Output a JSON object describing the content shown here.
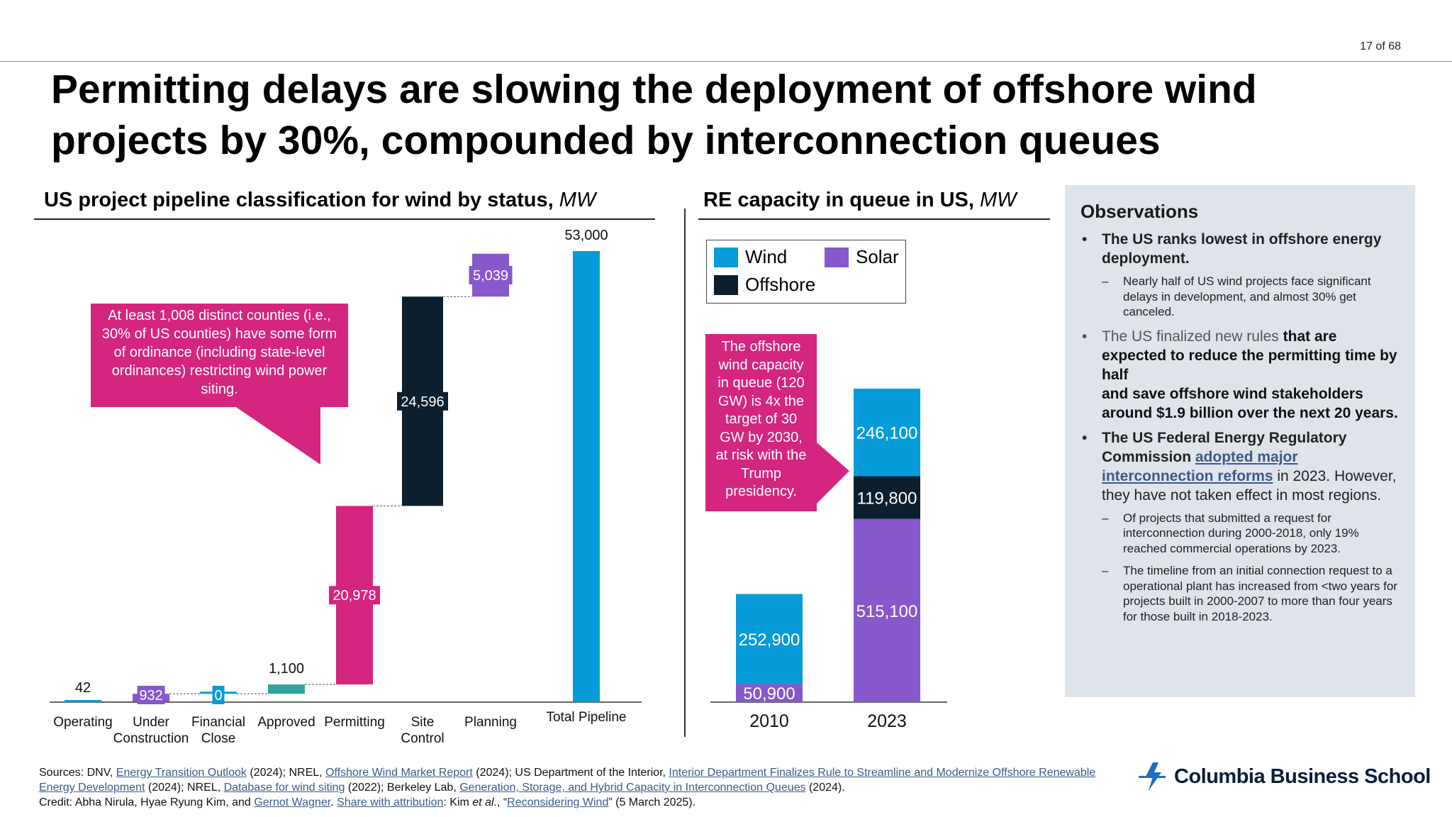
{
  "page": {
    "number": "17 of 68"
  },
  "title": "Permitting delays are slowing the deployment of offshore wind projects by 30%, compounded by interconnection queues",
  "colors": {
    "wind": "#089bd9",
    "solar": "#8757cc",
    "offshore": "#0b1f2e",
    "magenta": "#d4267e",
    "approved": "#2fa59a",
    "under": "#8757cc"
  },
  "chart_data": [
    {
      "type": "bar",
      "subtype": "waterfall",
      "title": "US project pipeline classification for wind by status",
      "unit": "MW",
      "categories": [
        "Operating",
        "Under Construction",
        "Financial Close",
        "Approved",
        "Permitting",
        "Site Control",
        "Planning",
        "Total Pipeline"
      ],
      "category_lines": [
        [
          "Operating"
        ],
        [
          "Under",
          "Construction"
        ],
        [
          "Financial",
          "Close"
        ],
        [
          "Approved"
        ],
        [
          "Permitting"
        ],
        [
          "Site",
          "Control"
        ],
        [
          "Planning"
        ],
        [
          "Total Pipeline"
        ]
      ],
      "values": [
        42,
        932,
        0,
        1100,
        20978,
        24596,
        5039,
        53000
      ],
      "labels": [
        "42",
        "932",
        "0",
        "1,100",
        "20,978",
        "24,596",
        "5,039",
        "53,000"
      ],
      "ylim": [
        0,
        53000
      ],
      "annotation": "At least 1,008 distinct counties (i.e., 30% of US counties) have some form of ordinance (including state-level ordinances) restricting wind power siting."
    },
    {
      "type": "bar",
      "subtype": "stacked",
      "title": "RE capacity in queue in US",
      "unit": "MW",
      "categories": [
        "2010",
        "2023"
      ],
      "series": [
        {
          "name": "Solar",
          "values": [
            50900,
            515100
          ],
          "labels": [
            "50,900",
            "515,100"
          ]
        },
        {
          "name": "Offshore",
          "values": [
            0,
            119800
          ],
          "labels": [
            "",
            "119,800"
          ]
        },
        {
          "name": "Wind",
          "values": [
            252900,
            246100
          ],
          "labels": [
            "252,900",
            "246,100"
          ]
        }
      ],
      "legend": [
        "Wind",
        "Solar",
        "Offshore"
      ],
      "ylim": [
        0,
        881000
      ],
      "annotation": "The offshore wind capacity in queue (120 GW) is 4x the target of 30 GW by 2030, at risk with the Trump presidency."
    }
  ],
  "observations": {
    "title": "Observations",
    "b1": {
      "bold": "The US ranks lowest in offshore energy deployment.",
      "sub": "Nearly half of US wind projects face significant delays in development, and almost 30% get canceled."
    },
    "b2": {
      "normal": "The US finalized new rules ",
      "bold": "that are expected to reduce the permitting time by half",
      "bold2": "and save offshore wind stakeholders around $1.9 billion over the next 20 years."
    },
    "b3": {
      "bold": "The US Federal Energy Regulatory Commission ",
      "link": "adopted major interconnection reforms",
      "rest": " in 2023. However, they have not taken effect in most regions.",
      "sub1": "Of projects that submitted a request for interconnection during 2000-2018, only 19% reached commercial operations by 2023.",
      "sub2": "The timeline from an initial connection request to a operational plant has increased from <two years for projects built in 2000-2007 to more than four years for those built in 2018-2023."
    }
  },
  "sources": {
    "s0": "Sources: DNV, ",
    "l1": "Energy Transition Outlook",
    "s1": " (2024); NREL, ",
    "l2": "Offshore Wind Market Report",
    "s2": " (2024); US Department of the Interior, ",
    "l3": "Interior Department Finalizes Rule to Streamline and Modernize Offshore Renewable Energy Development",
    "s3": " (2024); NREL, ",
    "l4": "Database for wind siting",
    "s4": " (2022); Berkeley Lab, ",
    "l5": "Generation, Storage, and Hybrid Capacity in Interconnection Queues",
    "s5": " (2024).",
    "c0": "Credit: Abha Nirula, Hyae Ryung Kim, and ",
    "l6": "Gernot Wagner",
    "c1": ". ",
    "l7": "Share with attribution",
    "c2": ": Kim ",
    "etal": "et al.",
    "c3": ", “",
    "l8": "Reconsidering Wind",
    "c4": "” (5 March 2025)."
  },
  "logo": {
    "text": "Columbia Business School"
  }
}
